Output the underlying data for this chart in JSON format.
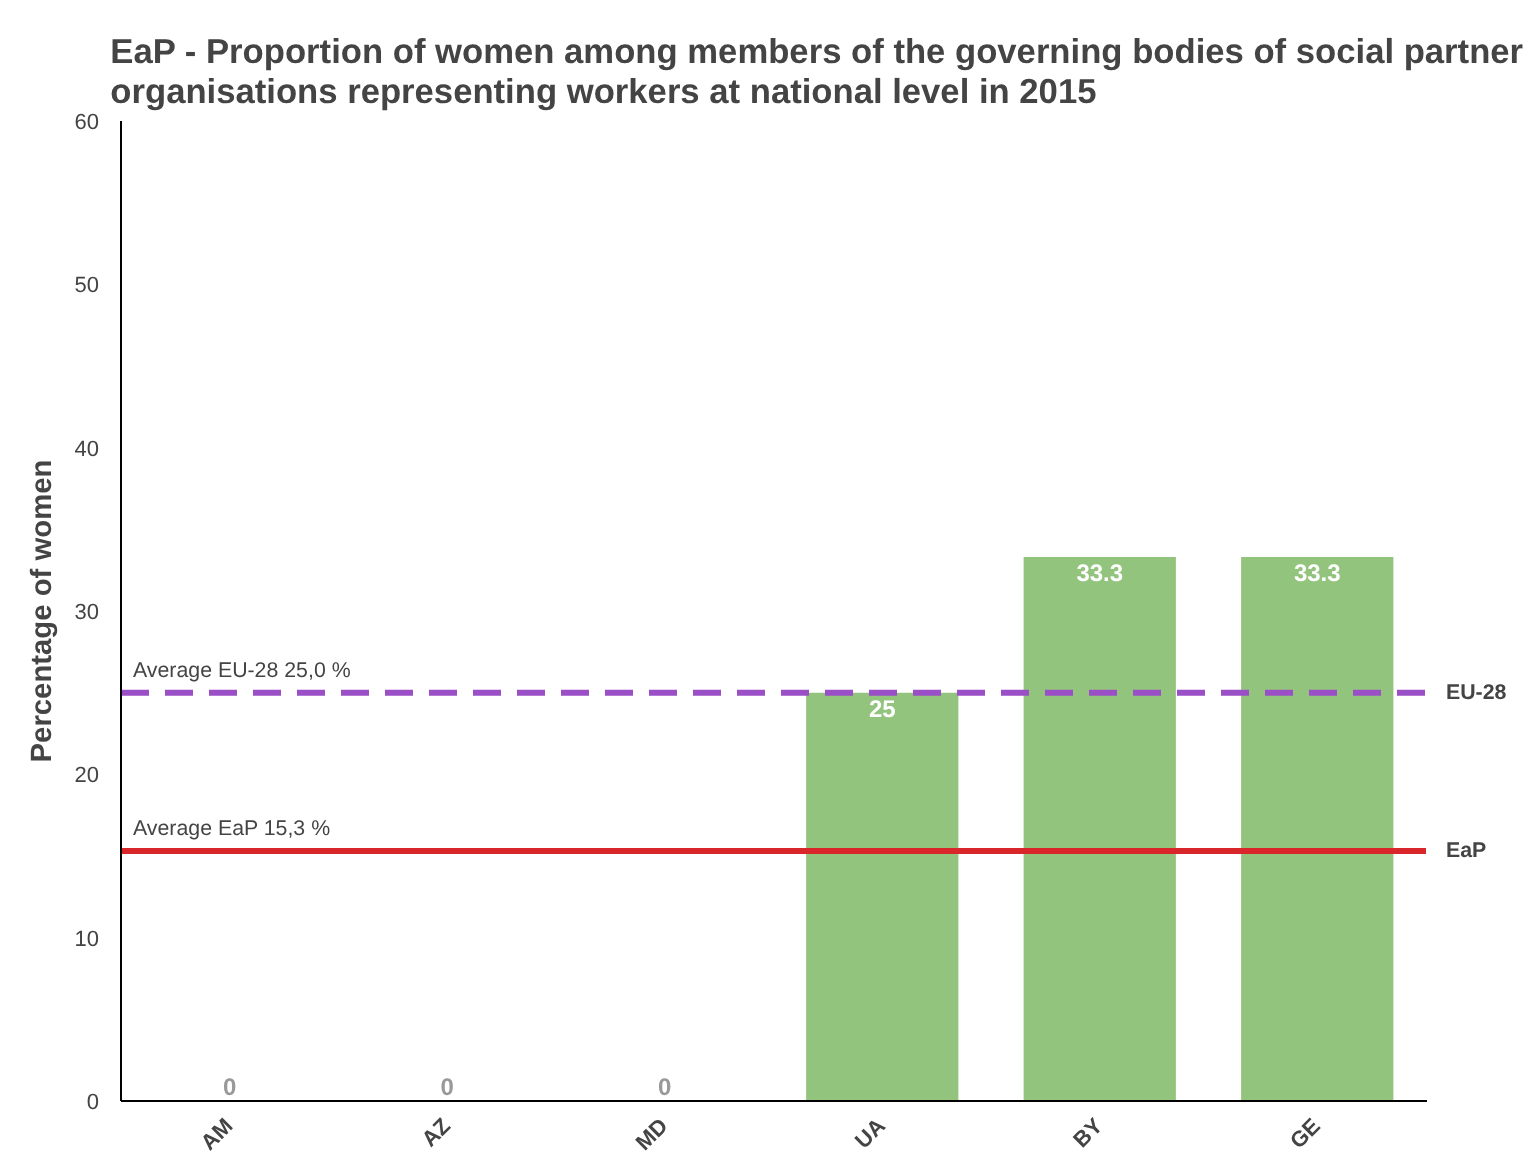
{
  "chart_data": {
    "type": "bar",
    "title": "EaP - Proportion of women among members of the governing bodies of social partner\norganisations representing workers at national level in 2015",
    "ylabel": "Percentage of women",
    "categories": [
      "AM",
      "AZ",
      "MD",
      "UA",
      "BY",
      "GE"
    ],
    "values": [
      0,
      0,
      0,
      25,
      33.3,
      33.3
    ],
    "color": "#93c47d",
    "data_labels": true,
    "ylim": [
      0,
      60
    ],
    "yticks": [
      0,
      10,
      20,
      30,
      40,
      50,
      60
    ],
    "grid": false,
    "ref_lines": [
      {
        "axis": "y",
        "value": 25,
        "label": "EU-28",
        "color": "#9b4fc7",
        "line_style": "dashed"
      },
      {
        "axis": "y",
        "value": 15.3,
        "label": "EaP",
        "color": "#d9262b",
        "line_style": "solid"
      }
    ],
    "annotations": [
      {
        "text": "Average EU-28  25,0 %",
        "y": 25
      },
      {
        "text": "Average EaP  15,3 %",
        "y": 15.3
      }
    ]
  }
}
